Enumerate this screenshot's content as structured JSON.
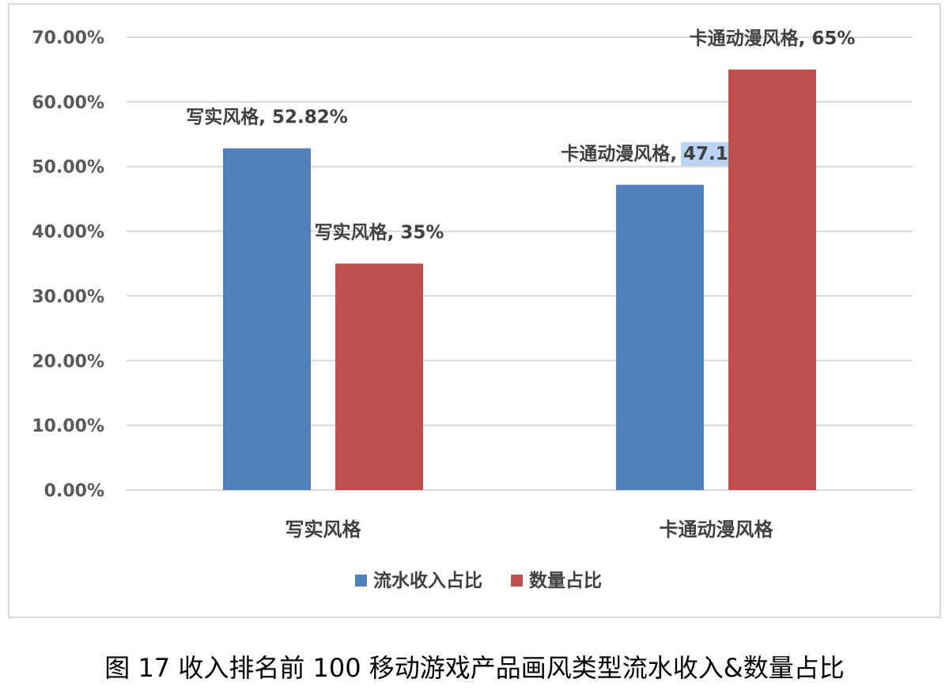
{
  "caption": "图 17  收入排名前 100 移动游戏产品画风类型流水收入&数量占比",
  "chart_data": {
    "type": "bar",
    "categories": [
      "写实风格",
      "卡通动漫风格"
    ],
    "series": [
      {
        "name": "流水收入占比",
        "color": "#4f81bd",
        "values": [
          52.82,
          47.18
        ],
        "labels": [
          "写实风格, 52.82%",
          "卡通动漫风格, 47.18%"
        ]
      },
      {
        "name": "数量占比",
        "color": "#c0504d",
        "values": [
          35,
          65
        ],
        "labels": [
          "写实风格, 35%",
          "卡通动漫风格, 65%"
        ]
      }
    ],
    "yticks": [
      "0.00%",
      "10.00%",
      "20.00%",
      "30.00%",
      "40.00%",
      "50.00%",
      "60.00%",
      "70.00%"
    ],
    "ylim": [
      0,
      70
    ],
    "grid": true,
    "legend_position": "bottom",
    "highlight": {
      "text": "47.18%",
      "color": "#b9d4f5"
    }
  }
}
